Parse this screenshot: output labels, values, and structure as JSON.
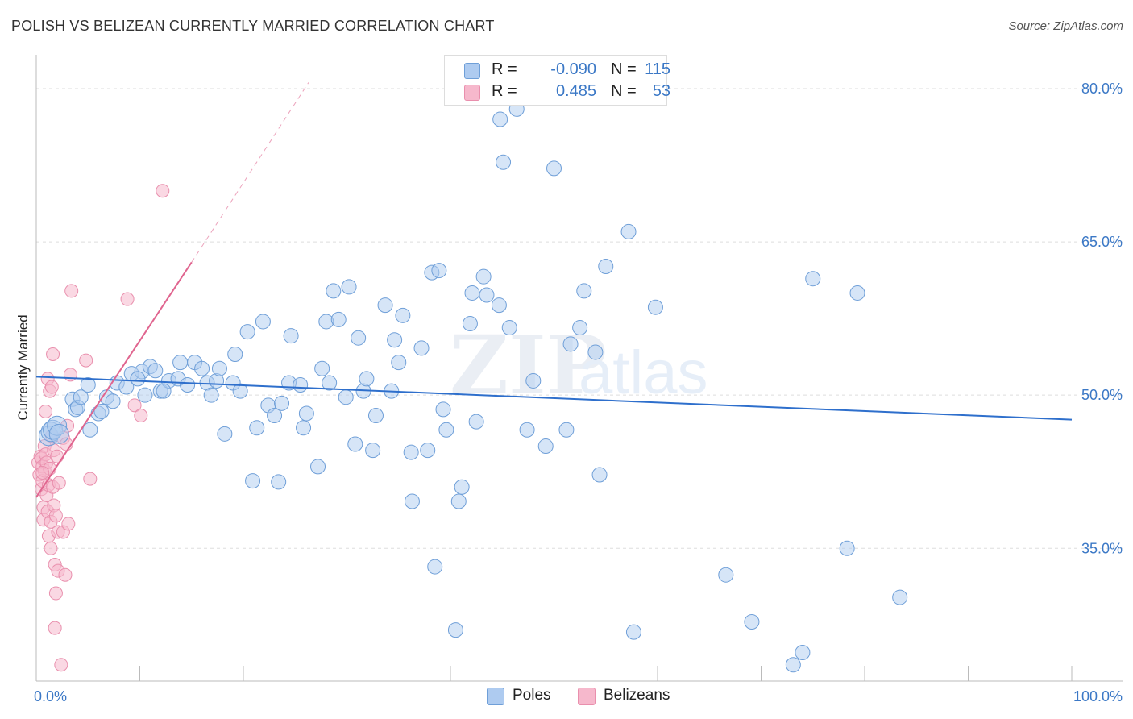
{
  "title": "POLISH VS BELIZEAN CURRENTLY MARRIED CORRELATION CHART",
  "source": "Source: ZipAtlas.com",
  "watermark": {
    "zip": "ZIP",
    "atlas": "atlas"
  },
  "colors": {
    "poles_fill": "#aecbf0",
    "poles_stroke": "#6f9fd8",
    "poles_line": "#2e6fcc",
    "belizeans_fill": "#f6b8cc",
    "belizeans_stroke": "#e98fad",
    "belizeans_line": "#e0658f",
    "tick_text": "#3b78c6",
    "grid": "#dddddd"
  },
  "legend": {
    "rows": [
      {
        "label": "R =",
        "r": "-0.090",
        "n_label": "N =",
        "n": "115"
      },
      {
        "label": "R =",
        "r": "0.485",
        "n_label": "N =",
        "n": "53"
      }
    ]
  },
  "bottom_legend": {
    "poles": "Poles",
    "belizeans": "Belizeans"
  },
  "chart_data": {
    "type": "scatter",
    "title": "POLISH VS BELIZEAN CURRENTLY MARRIED CORRELATION CHART",
    "xlabel": "",
    "ylabel": "Currently Married",
    "xlim": [
      0,
      100
    ],
    "ylim": [
      22,
      83
    ],
    "x_tick_labels": [
      "0.0%",
      "100.0%"
    ],
    "y_ticks": [
      35,
      50,
      65,
      80
    ],
    "y_tick_labels": [
      "35.0%",
      "50.0%",
      "65.0%",
      "80.0%"
    ],
    "grid": "horizontal dashed",
    "legend_position": "top-center",
    "series": [
      {
        "name": "Poles",
        "r": -0.09,
        "n": 115,
        "trend": {
          "x": [
            0,
            100
          ],
          "y": [
            51.8,
            47.6
          ]
        },
        "points": [
          [
            1.2,
            46.0
          ],
          [
            1.4,
            46.4
          ],
          [
            1.6,
            46.6
          ],
          [
            2.0,
            47.0
          ],
          [
            2.2,
            46.2
          ],
          [
            3.5,
            49.6
          ],
          [
            3.8,
            48.6
          ],
          [
            4.0,
            48.8
          ],
          [
            4.3,
            49.8
          ],
          [
            5.2,
            46.6
          ],
          [
            5.0,
            51.0
          ],
          [
            6.0,
            48.2
          ],
          [
            6.3,
            48.4
          ],
          [
            6.8,
            49.8
          ],
          [
            7.4,
            49.4
          ],
          [
            7.8,
            51.2
          ],
          [
            8.7,
            50.8
          ],
          [
            9.2,
            52.1
          ],
          [
            10.2,
            52.3
          ],
          [
            10.5,
            50.0
          ],
          [
            11.0,
            52.8
          ],
          [
            11.5,
            52.4
          ],
          [
            12.0,
            50.4
          ],
          [
            12.8,
            51.4
          ],
          [
            12.3,
            50.4
          ],
          [
            13.7,
            51.6
          ],
          [
            13.9,
            53.2
          ],
          [
            14.6,
            51.0
          ],
          [
            15.3,
            53.2
          ],
          [
            16.0,
            52.6
          ],
          [
            16.5,
            51.2
          ],
          [
            16.9,
            50.0
          ],
          [
            17.4,
            51.4
          ],
          [
            17.7,
            52.6
          ],
          [
            18.2,
            46.2
          ],
          [
            19.0,
            51.2
          ],
          [
            19.2,
            54.0
          ],
          [
            19.7,
            50.4
          ],
          [
            20.4,
            56.2
          ],
          [
            20.9,
            41.6
          ],
          [
            21.3,
            46.8
          ],
          [
            21.9,
            57.2
          ],
          [
            22.4,
            49.0
          ],
          [
            23.0,
            48.0
          ],
          [
            23.4,
            41.5
          ],
          [
            23.7,
            49.2
          ],
          [
            24.4,
            51.2
          ],
          [
            24.6,
            55.8
          ],
          [
            25.5,
            51.0
          ],
          [
            25.8,
            46.8
          ],
          [
            26.1,
            48.2
          ],
          [
            27.2,
            43.0
          ],
          [
            27.6,
            52.6
          ],
          [
            28.0,
            57.2
          ],
          [
            28.7,
            60.2
          ],
          [
            29.2,
            57.4
          ],
          [
            29.9,
            49.8
          ],
          [
            30.2,
            60.6
          ],
          [
            30.8,
            45.2
          ],
          [
            31.1,
            55.6
          ],
          [
            31.6,
            50.4
          ],
          [
            31.9,
            51.6
          ],
          [
            32.5,
            44.6
          ],
          [
            32.8,
            48.0
          ],
          [
            33.7,
            58.8
          ],
          [
            34.3,
            50.4
          ],
          [
            34.6,
            55.4
          ],
          [
            35.0,
            53.2
          ],
          [
            35.4,
            57.8
          ],
          [
            36.2,
            44.4
          ],
          [
            36.3,
            39.6
          ],
          [
            37.2,
            54.6
          ],
          [
            37.8,
            44.6
          ],
          [
            38.2,
            62.0
          ],
          [
            38.5,
            33.2
          ],
          [
            38.9,
            62.2
          ],
          [
            39.3,
            48.6
          ],
          [
            39.6,
            46.6
          ],
          [
            40.5,
            27.0
          ],
          [
            40.8,
            39.6
          ],
          [
            41.1,
            41.0
          ],
          [
            41.9,
            57.0
          ],
          [
            42.1,
            60.0
          ],
          [
            42.5,
            47.4
          ],
          [
            43.2,
            61.6
          ],
          [
            43.5,
            59.8
          ],
          [
            44.7,
            58.8
          ],
          [
            45.1,
            72.8
          ],
          [
            45.7,
            56.6
          ],
          [
            46.4,
            78.0
          ],
          [
            47.4,
            46.6
          ],
          [
            48.0,
            51.4
          ],
          [
            49.2,
            45.0
          ],
          [
            50.0,
            72.2
          ],
          [
            51.2,
            46.6
          ],
          [
            51.6,
            55.0
          ],
          [
            52.5,
            56.6
          ],
          [
            52.9,
            60.2
          ],
          [
            54.0,
            54.2
          ],
          [
            54.4,
            42.2
          ],
          [
            55.0,
            62.6
          ],
          [
            57.2,
            66.0
          ],
          [
            57.7,
            26.8
          ],
          [
            59.8,
            58.6
          ],
          [
            66.6,
            32.4
          ],
          [
            69.1,
            27.8
          ],
          [
            73.1,
            23.6
          ],
          [
            74.0,
            24.8
          ],
          [
            75.0,
            61.4
          ],
          [
            78.3,
            35.0
          ],
          [
            79.3,
            60.0
          ],
          [
            83.4,
            30.2
          ],
          [
            44.8,
            77.0
          ],
          [
            28.3,
            51.2
          ],
          [
            9.8,
            51.6
          ]
        ]
      },
      {
        "name": "Belizeans",
        "r": 0.485,
        "n": 53,
        "trend": {
          "x": [
            0,
            15
          ],
          "y": [
            40.0,
            63.0
          ]
        },
        "trend_extension": {
          "x": [
            15,
            26.3
          ],
          "y": [
            63.0,
            80.6
          ]
        },
        "points": [
          [
            0.2,
            43.4
          ],
          [
            0.3,
            42.2
          ],
          [
            0.4,
            44.0
          ],
          [
            0.5,
            43.8
          ],
          [
            0.5,
            40.8
          ],
          [
            0.6,
            43.0
          ],
          [
            0.6,
            41.6
          ],
          [
            0.7,
            39.0
          ],
          [
            0.7,
            37.8
          ],
          [
            0.8,
            45.0
          ],
          [
            0.8,
            42.6
          ],
          [
            0.9,
            48.4
          ],
          [
            0.9,
            44.2
          ],
          [
            1.0,
            43.4
          ],
          [
            1.0,
            40.2
          ],
          [
            1.1,
            51.6
          ],
          [
            1.1,
            38.6
          ],
          [
            1.2,
            41.2
          ],
          [
            1.2,
            36.2
          ],
          [
            1.3,
            42.8
          ],
          [
            1.3,
            50.4
          ],
          [
            1.4,
            37.6
          ],
          [
            1.4,
            35.0
          ],
          [
            1.5,
            50.8
          ],
          [
            1.5,
            46.0
          ],
          [
            1.6,
            54.0
          ],
          [
            1.6,
            41.0
          ],
          [
            1.7,
            44.6
          ],
          [
            1.7,
            39.2
          ],
          [
            1.8,
            33.4
          ],
          [
            1.8,
            27.2
          ],
          [
            1.9,
            38.2
          ],
          [
            1.9,
            30.6
          ],
          [
            2.0,
            44.0
          ],
          [
            2.1,
            36.6
          ],
          [
            2.1,
            32.8
          ],
          [
            2.2,
            41.4
          ],
          [
            2.4,
            23.6
          ],
          [
            2.6,
            45.8
          ],
          [
            2.8,
            32.4
          ],
          [
            2.6,
            36.6
          ],
          [
            2.9,
            45.2
          ],
          [
            3.0,
            47.0
          ],
          [
            3.1,
            37.4
          ],
          [
            3.3,
            52.0
          ],
          [
            3.4,
            60.2
          ],
          [
            4.8,
            53.4
          ],
          [
            5.2,
            41.8
          ],
          [
            8.8,
            59.4
          ],
          [
            9.5,
            49.0
          ],
          [
            10.1,
            48.0
          ],
          [
            12.2,
            70.0
          ],
          [
            0.6,
            42.4
          ]
        ]
      }
    ]
  }
}
